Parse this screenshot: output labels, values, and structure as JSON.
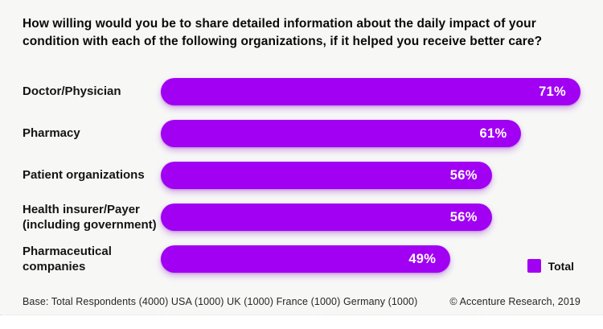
{
  "title": "How willing would you be to share detailed information about the daily impact of your condition with each of the following organizations, if it helped you receive better care?",
  "chart_data": {
    "type": "bar",
    "orientation": "horizontal",
    "categories": [
      "Doctor/Physician",
      "Pharmacy",
      "Patient organizations",
      "Health insurer/Payer (including government)",
      "Pharmaceutical companies"
    ],
    "values": [
      71,
      61,
      56,
      56,
      49
    ],
    "value_labels": [
      "71%",
      "61%",
      "56%",
      "56%",
      "49%"
    ],
    "series": [
      {
        "name": "Total",
        "values": [
          71,
          61,
          56,
          56,
          49
        ]
      }
    ],
    "xlim": [
      0,
      71
    ],
    "grid": false,
    "legend_position": "bottom-right",
    "value_label_position": "inside-end"
  },
  "legend": {
    "label": "Total",
    "swatch_icon": "square-swatch"
  },
  "footer": {
    "base_note": "Base: Total Respondents (4000) USA (1000) UK (1000) France (1000) Germany (1000)",
    "source": "© Accenture Research, 2019"
  },
  "colors": {
    "bar": "#a100f2",
    "background": "#f7f7f6",
    "value_text": "#ffffff",
    "title_text": "#0a0a0a",
    "footer_text": "#262626"
  }
}
